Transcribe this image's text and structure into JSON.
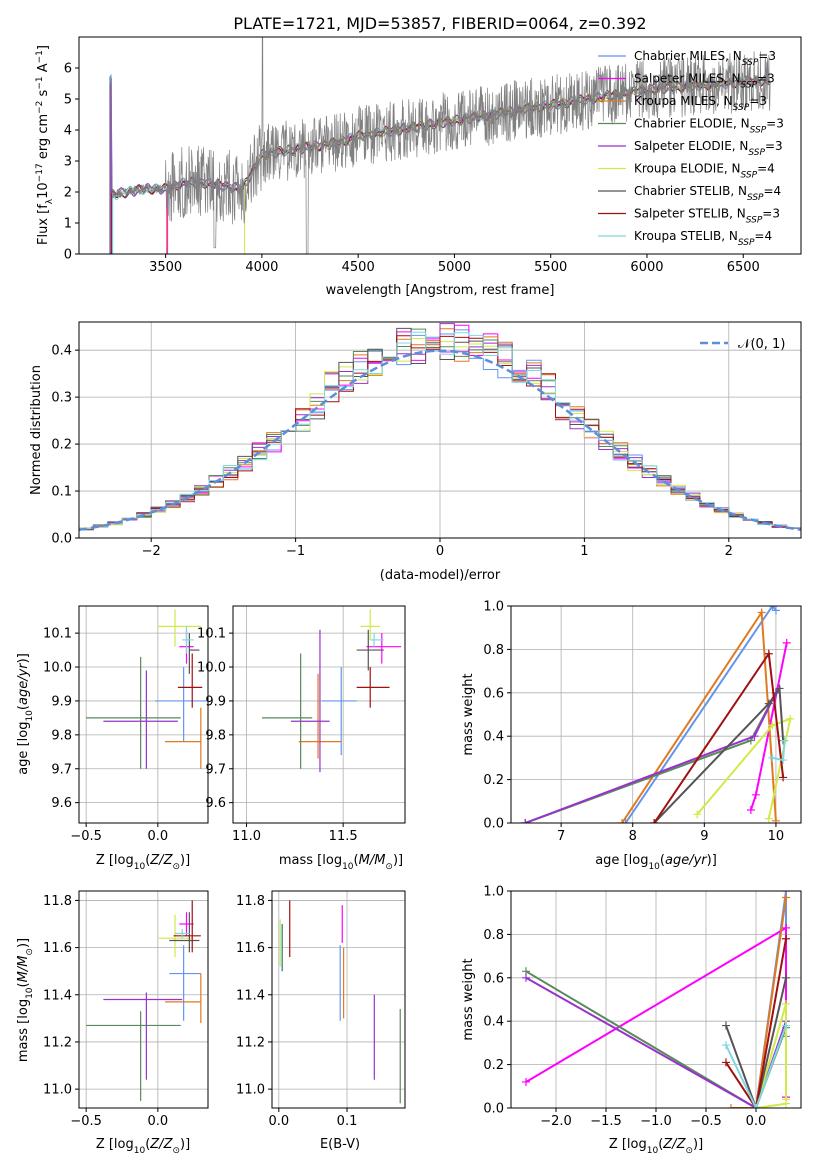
{
  "figure": {
    "title": "PLATE=1721, MJD=53857, FIBERID=0064, z=0.392"
  },
  "series_styles": [
    {
      "name": "Chabrier MILES",
      "legend_label": "Chabrier MILES, N",
      "nssp": "=3",
      "color": "#6495ed"
    },
    {
      "name": "Salpeter MILES",
      "legend_label": "Salpeter MILES, N",
      "nssp": "=3",
      "color": "#ff00ff"
    },
    {
      "name": "Kroupa MILES",
      "legend_label": "Kroupa MILES, N",
      "nssp": "=3",
      "color": "#e07a1f"
    },
    {
      "name": "Chabrier ELODIE",
      "legend_label": "Chabrier ELODIE, N",
      "nssp": "=3",
      "color": "#5a8a5a"
    },
    {
      "name": "Salpeter ELODIE",
      "legend_label": "Salpeter ELODIE, N",
      "nssp": "=3",
      "color": "#9932cc"
    },
    {
      "name": "Kroupa ELODIE",
      "legend_label": "Kroupa ELODIE, N",
      "nssp": "=4",
      "color": "#d4e84a"
    },
    {
      "name": "Chabrier STELIB",
      "legend_label": "Chabrier STELIB, N",
      "nssp": "=4",
      "color": "#555555"
    },
    {
      "name": "Salpeter STELIB",
      "legend_label": "Salpeter STELIB, N",
      "nssp": "=3",
      "color": "#a01010"
    },
    {
      "name": "Kroupa STELIB",
      "legend_label": "Kroupa STELIB, N",
      "nssp": "=4",
      "color": "#7fd8e0"
    }
  ],
  "chart_data": [
    {
      "id": "spectrum",
      "type": "line",
      "title": "PLATE=1721, MJD=53857, FIBERID=0064, z=0.392",
      "xlabel": "wavelength [Angstrom, rest frame]",
      "ylabel": "Flux [f",
      "ylabel_rest": "10",
      "ylabel_exp": "−17",
      "ylabel_units": " erg cm",
      "xlim": [
        3050,
        6800
      ],
      "ylim": [
        0,
        7
      ],
      "xticks": [
        3500,
        4000,
        4500,
        5000,
        5500,
        6000,
        6500
      ],
      "yticks": [
        0,
        1,
        2,
        3,
        4,
        5,
        6
      ],
      "legend": "top-right",
      "data_color": "#808080",
      "model_continuum": [
        [
          3220,
          1.9
        ],
        [
          3300,
          2.0
        ],
        [
          3400,
          2.1
        ],
        [
          3500,
          2.1
        ],
        [
          3600,
          2.3
        ],
        [
          3700,
          2.3
        ],
        [
          3800,
          2.2
        ],
        [
          3900,
          2.1
        ],
        [
          4000,
          3.2
        ],
        [
          4100,
          3.3
        ],
        [
          4200,
          3.4
        ],
        [
          4300,
          3.5
        ],
        [
          4400,
          3.6
        ],
        [
          4500,
          3.8
        ],
        [
          4600,
          3.9
        ],
        [
          4700,
          4.0
        ],
        [
          4800,
          4.1
        ],
        [
          4900,
          4.2
        ],
        [
          5000,
          4.3
        ],
        [
          5100,
          4.4
        ],
        [
          5200,
          4.5
        ],
        [
          5300,
          4.6
        ],
        [
          5400,
          4.7
        ],
        [
          5500,
          4.8
        ],
        [
          5600,
          4.9
        ],
        [
          5700,
          5.0
        ],
        [
          5800,
          5.1
        ],
        [
          5900,
          5.2
        ],
        [
          6000,
          5.3
        ],
        [
          6100,
          5.35
        ],
        [
          6200,
          5.4
        ],
        [
          6300,
          5.45
        ],
        [
          6400,
          5.5
        ],
        [
          6500,
          5.55
        ],
        [
          6600,
          5.6
        ]
      ],
      "data_range": [
        3210,
        6640
      ]
    },
    {
      "id": "residuals",
      "type": "histogram",
      "xlabel": "(data-model)/error",
      "ylabel": "Normed distribution",
      "xlim": [
        -2.5,
        2.5
      ],
      "ylim": [
        0,
        0.46
      ],
      "xticks": [
        -2,
        -1,
        0,
        1,
        2
      ],
      "yticks": [
        0.0,
        0.1,
        0.2,
        0.3,
        0.4
      ],
      "legend_label": "𝒩(0, 1)",
      "legend": "top-right",
      "gaussian_color": "#5b8fd9"
    },
    {
      "id": "age-vs-Z",
      "type": "errorbar",
      "xlabel": "Z [log",
      "ylabel": "age  [log",
      "xlim": [
        -0.55,
        0.35
      ],
      "ylim": [
        9.54,
        10.18
      ],
      "xticks": [
        -0.5,
        0.0
      ],
      "yticks": [
        9.6,
        9.7,
        9.8,
        9.9,
        10.0,
        10.1
      ],
      "points": [
        {
          "s": 0,
          "x": 0.18,
          "y": 9.9,
          "xe": [
            0.2,
            0.3
          ],
          "ye": [
            0.12,
            0.1
          ]
        },
        {
          "s": 1,
          "x": 0.2,
          "y": 10.06,
          "xe": [
            0.05,
            0.05
          ],
          "ye": [
            0.05,
            0.05
          ]
        },
        {
          "s": 2,
          "x": 0.3,
          "y": 9.78,
          "xe": [
            0.25,
            0.0
          ],
          "ye": [
            0.08,
            0.1
          ]
        },
        {
          "s": 3,
          "x": -0.12,
          "y": 9.85,
          "xe": [
            0.38,
            0.28
          ],
          "ye": [
            0.15,
            0.18
          ]
        },
        {
          "s": 4,
          "x": -0.08,
          "y": 9.84,
          "xe": [
            0.3,
            0.22
          ],
          "ye": [
            0.14,
            0.15
          ]
        },
        {
          "s": 5,
          "x": 0.12,
          "y": 10.12,
          "xe": [
            0.12,
            0.18
          ],
          "ye": [
            0.06,
            0.05
          ]
        },
        {
          "s": 6,
          "x": 0.22,
          "y": 10.05,
          "xe": [
            0.0,
            0.07
          ],
          "ye": [
            0.07,
            0.05
          ]
        },
        {
          "s": 7,
          "x": 0.24,
          "y": 9.94,
          "xe": [
            0.1,
            0.07
          ],
          "ye": [
            0.06,
            0.1
          ]
        },
        {
          "s": 8,
          "x": 0.2,
          "y": 10.08,
          "xe": [
            0.03,
            0.05
          ],
          "ye": [
            0.04,
            0.04
          ]
        }
      ]
    },
    {
      "id": "age-vs-mass",
      "type": "errorbar",
      "xlabel": "mass [log",
      "xlim": [
        10.93,
        11.82
      ],
      "ylim": [
        9.54,
        10.18
      ],
      "xticks": [
        11.0,
        11.5
      ],
      "yticks": [
        9.6,
        9.7,
        9.8,
        9.9,
        10.0,
        10.1
      ],
      "points": [
        {
          "s": 0,
          "x": 11.49,
          "y": 9.9,
          "xe": [
            0.1,
            0.08
          ],
          "ye": [
            0.16,
            0.1
          ]
        },
        {
          "s": 1,
          "x": 11.7,
          "y": 10.06,
          "xe": [
            0.08,
            0.1
          ],
          "ye": [
            0.05,
            0.04
          ]
        },
        {
          "s": 2,
          "x": 11.37,
          "y": 9.78,
          "xe": [
            0.1,
            0.12
          ],
          "ye": [
            0.05,
            0.2
          ]
        },
        {
          "s": 3,
          "x": 11.28,
          "y": 9.85,
          "xe": [
            0.2,
            0.06
          ],
          "ye": [
            0.15,
            0.19
          ]
        },
        {
          "s": 4,
          "x": 11.38,
          "y": 9.84,
          "xe": [
            0.15,
            0.05
          ],
          "ye": [
            0.15,
            0.27
          ]
        },
        {
          "s": 5,
          "x": 11.64,
          "y": 10.12,
          "xe": [
            0.05,
            0.05
          ],
          "ye": [
            0.04,
            0.05
          ]
        },
        {
          "s": 6,
          "x": 11.63,
          "y": 10.05,
          "xe": [
            0.06,
            0.08
          ],
          "ye": [
            0.06,
            0.06
          ]
        },
        {
          "s": 7,
          "x": 11.64,
          "y": 9.94,
          "xe": [
            0.07,
            0.1
          ],
          "ye": [
            0.06,
            0.06
          ]
        },
        {
          "s": 8,
          "x": 11.66,
          "y": 10.08,
          "xe": [
            0.02,
            0.05
          ],
          "ye": [
            0.02,
            0.02
          ]
        }
      ]
    },
    {
      "id": "mass-weight-vs-age",
      "type": "line",
      "xlabel": "age  [log",
      "ylabel": "mass weight",
      "xlim": [
        6.3,
        10.35
      ],
      "ylim": [
        0,
        1
      ],
      "xticks": [
        7,
        8,
        9,
        10
      ],
      "yticks": [
        0.0,
        0.2,
        0.4,
        0.6,
        0.8,
        1.0
      ],
      "lines": [
        {
          "s": 0,
          "pts": [
            [
              7.9,
              0.0
            ],
            [
              9.95,
              1.0
            ],
            [
              10.0,
              0.98
            ]
          ]
        },
        {
          "s": 1,
          "pts": [
            [
              9.65,
              0.06
            ],
            [
              9.72,
              0.13
            ],
            [
              10.15,
              0.83
            ]
          ]
        },
        {
          "s": 2,
          "pts": [
            [
              7.85,
              0.0
            ],
            [
              9.8,
              0.97
            ],
            [
              10.0,
              0.01
            ]
          ]
        },
        {
          "s": 3,
          "pts": [
            [
              6.5,
              0.0
            ],
            [
              9.65,
              0.38
            ],
            [
              10.0,
              0.6
            ]
          ]
        },
        {
          "s": 4,
          "pts": [
            [
              6.5,
              0.0
            ],
            [
              9.7,
              0.4
            ],
            [
              10.0,
              0.6
            ]
          ]
        },
        {
          "s": 5,
          "pts": [
            [
              8.9,
              0.04
            ],
            [
              9.95,
              0.45
            ],
            [
              10.2,
              0.48
            ],
            [
              9.9,
              0.02
            ]
          ]
        },
        {
          "s": 6,
          "pts": [
            [
              8.3,
              0.0
            ],
            [
              9.9,
              0.55
            ],
            [
              10.05,
              0.62
            ],
            [
              10.1,
              0.38
            ]
          ]
        },
        {
          "s": 7,
          "pts": [
            [
              8.3,
              0.0
            ],
            [
              9.9,
              0.78
            ],
            [
              10.1,
              0.21
            ]
          ]
        },
        {
          "s": 8,
          "pts": [
            [
              9.95,
              0.3
            ],
            [
              10.1,
              0.29
            ],
            [
              10.12,
              0.38
            ]
          ]
        }
      ]
    },
    {
      "id": "mass-vs-Z",
      "type": "errorbar",
      "xlabel": "Z [log",
      "ylabel": "mass [log",
      "xlim": [
        -0.55,
        0.35
      ],
      "ylim": [
        10.92,
        11.84
      ],
      "xticks": [
        -0.5,
        0.0
      ],
      "yticks": [
        11.0,
        11.2,
        11.4,
        11.6,
        11.8
      ],
      "points": [
        {
          "s": 0,
          "x": 0.18,
          "y": 11.49,
          "xe": [
            0.1,
            0.12
          ],
          "ye": [
            0.2,
            0.12
          ]
        },
        {
          "s": 1,
          "x": 0.2,
          "y": 11.7,
          "xe": [
            0.05,
            0.05
          ],
          "ye": [
            0.05,
            0.05
          ]
        },
        {
          "s": 2,
          "x": 0.3,
          "y": 11.37,
          "xe": [
            0.25,
            0.0
          ],
          "ye": [
            0.09,
            0.12
          ]
        },
        {
          "s": 3,
          "x": -0.12,
          "y": 11.27,
          "xe": [
            0.38,
            0.28
          ],
          "ye": [
            0.32,
            0.06
          ]
        },
        {
          "s": 4,
          "x": -0.08,
          "y": 11.38,
          "xe": [
            0.3,
            0.25
          ],
          "ye": [
            0.34,
            0.03
          ]
        },
        {
          "s": 5,
          "x": 0.12,
          "y": 11.64,
          "xe": [
            0.12,
            0.12
          ],
          "ye": [
            0.08,
            0.1
          ]
        },
        {
          "s": 6,
          "x": 0.22,
          "y": 11.63,
          "xe": [
            0.14,
            0.07
          ],
          "ye": [
            0.05,
            0.12
          ]
        },
        {
          "s": 7,
          "x": 0.24,
          "y": 11.65,
          "xe": [
            0.13,
            0.06
          ],
          "ye": [
            0.07,
            0.15
          ]
        },
        {
          "s": 8,
          "x": 0.17,
          "y": 11.66,
          "xe": [
            0.05,
            0.05
          ],
          "ye": [
            0.02,
            0.02
          ]
        }
      ]
    },
    {
      "id": "mass-vs-ebv",
      "type": "errorbar",
      "xlabel": "E(B-V)",
      "xlim": [
        -0.01,
        0.185
      ],
      "ylim": [
        10.92,
        11.84
      ],
      "xticks": [
        0.0,
        0.1
      ],
      "yticks": [
        11.0,
        11.2,
        11.4,
        11.6,
        11.8
      ],
      "points": [
        {
          "s": 0,
          "x": 0.09,
          "y": 11.45,
          "xe": [
            0,
            0
          ],
          "ye": [
            0.16,
            0.16
          ]
        },
        {
          "s": 1,
          "x": 0.093,
          "y": 11.7,
          "xe": [
            0,
            0
          ],
          "ye": [
            0.08,
            0.08
          ]
        },
        {
          "s": 2,
          "x": 0.095,
          "y": 11.45,
          "xe": [
            0,
            0
          ],
          "ye": [
            0.15,
            0.15
          ]
        },
        {
          "s": 3,
          "x": 0.178,
          "y": 11.14,
          "xe": [
            0,
            0
          ],
          "ye": [
            0.2,
            0.2
          ]
        },
        {
          "s": 4,
          "x": 0.14,
          "y": 11.22,
          "xe": [
            0,
            0
          ],
          "ye": [
            0.18,
            0.18
          ]
        },
        {
          "s": 5,
          "x": 0.002,
          "y": 11.62,
          "xe": [
            0,
            0
          ],
          "ye": [
            0.1,
            0.1
          ]
        },
        {
          "s": 6,
          "x": 0.005,
          "y": 11.6,
          "xe": [
            0,
            0
          ],
          "ye": [
            0.1,
            0.1
          ]
        },
        {
          "s": 7,
          "x": 0.016,
          "y": 11.68,
          "xe": [
            0,
            0
          ],
          "ye": [
            0.12,
            0.12
          ]
        },
        {
          "s": 8,
          "x": 0.004,
          "y": 11.6,
          "xe": [
            0,
            0
          ],
          "ye": [
            0.1,
            0.1
          ]
        }
      ]
    },
    {
      "id": "mass-weight-vs-Z",
      "type": "line",
      "xlabel": "Z [log",
      "ylabel": "mass weight",
      "xlim": [
        -2.45,
        0.45
      ],
      "ylim": [
        0,
        1
      ],
      "xticks": [
        -2.0,
        -1.5,
        -1.0,
        -0.5,
        0.0
      ],
      "yticks": [
        0.0,
        0.2,
        0.4,
        0.6,
        0.8,
        1.0
      ],
      "lines": [
        {
          "s": 0,
          "pts": [
            [
              0.0,
              0.0
            ],
            [
              0.3,
              1.0
            ],
            [
              0.3,
              0.33
            ]
          ]
        },
        {
          "s": 1,
          "pts": [
            [
              -2.3,
              0.12
            ],
            [
              0.3,
              0.83
            ],
            [
              0.3,
              0.05
            ]
          ]
        },
        {
          "s": 2,
          "pts": [
            [
              -0.25,
              0.0
            ],
            [
              0.0,
              0.0
            ],
            [
              0.3,
              0.97
            ]
          ]
        },
        {
          "s": 3,
          "pts": [
            [
              -2.3,
              0.63
            ],
            [
              0.0,
              0.0
            ],
            [
              0.3,
              0.37
            ]
          ]
        },
        {
          "s": 4,
          "pts": [
            [
              -2.3,
              0.6
            ],
            [
              0.0,
              0.0
            ],
            [
              0.3,
              0.4
            ]
          ]
        },
        {
          "s": 5,
          "pts": [
            [
              0.3,
              0.02
            ],
            [
              0.0,
              0.0
            ],
            [
              0.3,
              0.48
            ],
            [
              0.3,
              0.04
            ]
          ]
        },
        {
          "s": 6,
          "pts": [
            [
              -0.3,
              0.38
            ],
            [
              0.0,
              0.0
            ],
            [
              0.3,
              0.6
            ]
          ]
        },
        {
          "s": 7,
          "pts": [
            [
              -0.3,
              0.21
            ],
            [
              0.0,
              0.0
            ],
            [
              0.3,
              0.78
            ]
          ]
        },
        {
          "s": 8,
          "pts": [
            [
              -0.3,
              0.29
            ],
            [
              0.0,
              0.0
            ],
            [
              0.3,
              0.38
            ]
          ]
        }
      ]
    }
  ]
}
